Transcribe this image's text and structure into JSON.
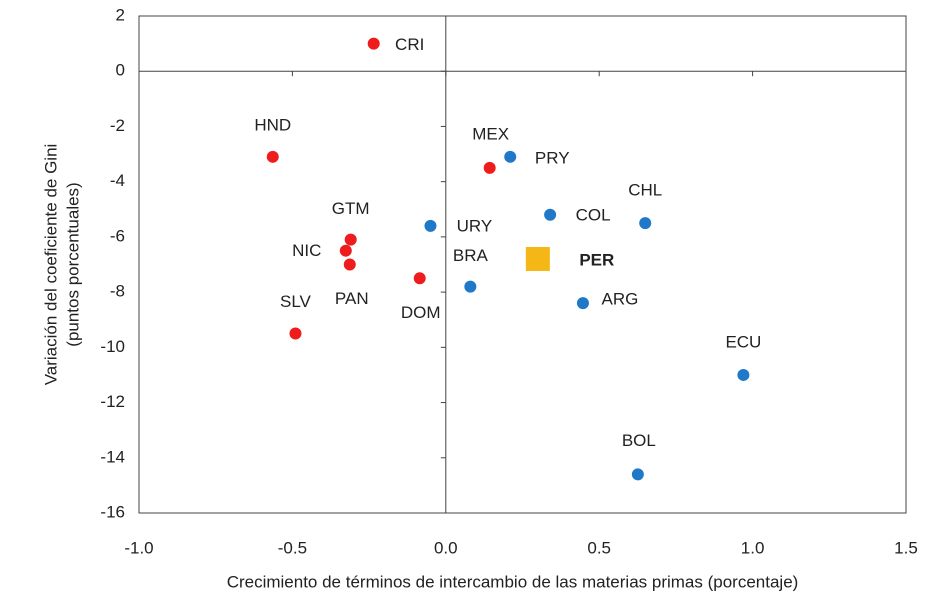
{
  "chart_data": {
    "type": "scatter",
    "xlabel": "Crecimiento de términos de intercambio de las materias primas (porcentaje)",
    "ylabel": [
      "Variación del coeficiente de Gini",
      "(puntos porcentuales)"
    ],
    "xlim": [
      -1.0,
      1.5
    ],
    "xticks": [
      {
        "value": -1.0,
        "label": "-1.0"
      },
      {
        "value": -0.5,
        "label": "-0.5"
      },
      {
        "value": 0,
        "label": "0.0"
      },
      {
        "value": 0.5,
        "label": "0.5"
      },
      {
        "value": 1.0,
        "label": "1.0"
      },
      {
        "value": 1.5,
        "label": "1.5"
      }
    ],
    "ylim": [
      -16,
      2
    ],
    "yticks": [
      -16,
      -14,
      -12,
      -10,
      -8,
      -6,
      -4,
      -2,
      0,
      2
    ],
    "series": [
      {
        "color": "#ee1c1c",
        "marker": "circle",
        "labels": [
          "CRI",
          "HND",
          "GTM",
          "NIC",
          "PAN",
          "SLV",
          "DOM"
        ],
        "x": [
          -0.235,
          -0.564,
          -0.31,
          -0.326,
          -0.313,
          -0.49,
          -0.085
        ],
        "y": [
          1.0,
          -3.1,
          -6.1,
          -6.5,
          -7.0,
          -9.5,
          -7.5
        ]
      },
      {
        "color": "#1f78c8",
        "marker": "circle",
        "labels": [
          "MEX",
          "PRY",
          "URY",
          "COL",
          "CHL",
          "BRA",
          "ARG",
          "ECU",
          "BOL"
        ],
        "x": [
          0.143,
          0.21,
          -0.05,
          0.34,
          0.65,
          0.08,
          0.447,
          0.97,
          0.626
        ],
        "y": [
          -3.5,
          -3.1,
          -5.6,
          -5.2,
          -5.5,
          -7.8,
          -8.4,
          -11.0,
          -14.6
        ],
        "colors": [
          "#ee1c1c",
          "#1f78c8",
          "#1f78c8",
          "#1f78c8",
          "#1f78c8",
          "#1f78c8",
          "#1f78c8",
          "#1f78c8",
          "#1f78c8"
        ]
      },
      {
        "color": "#f5b716",
        "marker": "square",
        "bold": true,
        "labels": [
          "PER"
        ],
        "x": [
          0.3
        ],
        "y": [
          -6.8
        ]
      }
    ]
  }
}
